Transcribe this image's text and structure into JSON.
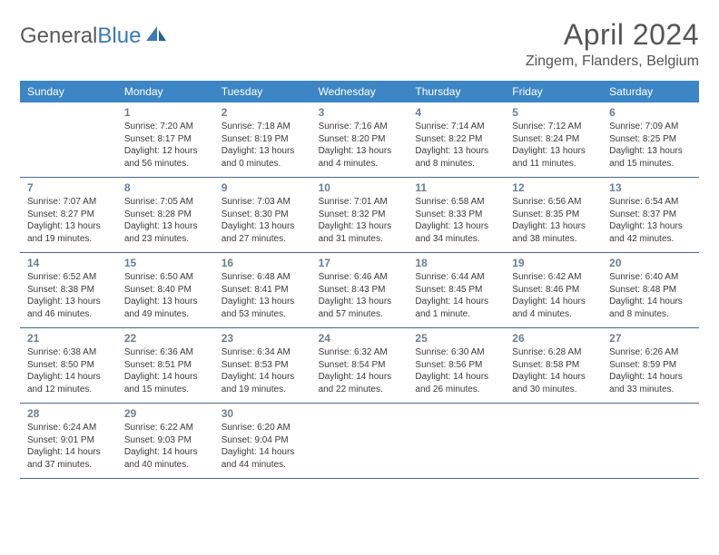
{
  "logo": {
    "text1": "General",
    "text2": "Blue"
  },
  "title": "April 2024",
  "location": "Zingem, Flanders, Belgium",
  "header_bg": "#3c86c5",
  "daynames": [
    "Sunday",
    "Monday",
    "Tuesday",
    "Wednesday",
    "Thursday",
    "Friday",
    "Saturday"
  ],
  "weeks": [
    [
      null,
      {
        "n": "1",
        "sr": "7:20 AM",
        "ss": "8:17 PM",
        "d1": "Daylight: 12 hours",
        "d2": "and 56 minutes."
      },
      {
        "n": "2",
        "sr": "7:18 AM",
        "ss": "8:19 PM",
        "d1": "Daylight: 13 hours",
        "d2": "and 0 minutes."
      },
      {
        "n": "3",
        "sr": "7:16 AM",
        "ss": "8:20 PM",
        "d1": "Daylight: 13 hours",
        "d2": "and 4 minutes."
      },
      {
        "n": "4",
        "sr": "7:14 AM",
        "ss": "8:22 PM",
        "d1": "Daylight: 13 hours",
        "d2": "and 8 minutes."
      },
      {
        "n": "5",
        "sr": "7:12 AM",
        "ss": "8:24 PM",
        "d1": "Daylight: 13 hours",
        "d2": "and 11 minutes."
      },
      {
        "n": "6",
        "sr": "7:09 AM",
        "ss": "8:25 PM",
        "d1": "Daylight: 13 hours",
        "d2": "and 15 minutes."
      }
    ],
    [
      {
        "n": "7",
        "sr": "7:07 AM",
        "ss": "8:27 PM",
        "d1": "Daylight: 13 hours",
        "d2": "and 19 minutes."
      },
      {
        "n": "8",
        "sr": "7:05 AM",
        "ss": "8:28 PM",
        "d1": "Daylight: 13 hours",
        "d2": "and 23 minutes."
      },
      {
        "n": "9",
        "sr": "7:03 AM",
        "ss": "8:30 PM",
        "d1": "Daylight: 13 hours",
        "d2": "and 27 minutes."
      },
      {
        "n": "10",
        "sr": "7:01 AM",
        "ss": "8:32 PM",
        "d1": "Daylight: 13 hours",
        "d2": "and 31 minutes."
      },
      {
        "n": "11",
        "sr": "6:58 AM",
        "ss": "8:33 PM",
        "d1": "Daylight: 13 hours",
        "d2": "and 34 minutes."
      },
      {
        "n": "12",
        "sr": "6:56 AM",
        "ss": "8:35 PM",
        "d1": "Daylight: 13 hours",
        "d2": "and 38 minutes."
      },
      {
        "n": "13",
        "sr": "6:54 AM",
        "ss": "8:37 PM",
        "d1": "Daylight: 13 hours",
        "d2": "and 42 minutes."
      }
    ],
    [
      {
        "n": "14",
        "sr": "6:52 AM",
        "ss": "8:38 PM",
        "d1": "Daylight: 13 hours",
        "d2": "and 46 minutes."
      },
      {
        "n": "15",
        "sr": "6:50 AM",
        "ss": "8:40 PM",
        "d1": "Daylight: 13 hours",
        "d2": "and 49 minutes."
      },
      {
        "n": "16",
        "sr": "6:48 AM",
        "ss": "8:41 PM",
        "d1": "Daylight: 13 hours",
        "d2": "and 53 minutes."
      },
      {
        "n": "17",
        "sr": "6:46 AM",
        "ss": "8:43 PM",
        "d1": "Daylight: 13 hours",
        "d2": "and 57 minutes."
      },
      {
        "n": "18",
        "sr": "6:44 AM",
        "ss": "8:45 PM",
        "d1": "Daylight: 14 hours",
        "d2": "and 1 minute."
      },
      {
        "n": "19",
        "sr": "6:42 AM",
        "ss": "8:46 PM",
        "d1": "Daylight: 14 hours",
        "d2": "and 4 minutes."
      },
      {
        "n": "20",
        "sr": "6:40 AM",
        "ss": "8:48 PM",
        "d1": "Daylight: 14 hours",
        "d2": "and 8 minutes."
      }
    ],
    [
      {
        "n": "21",
        "sr": "6:38 AM",
        "ss": "8:50 PM",
        "d1": "Daylight: 14 hours",
        "d2": "and 12 minutes."
      },
      {
        "n": "22",
        "sr": "6:36 AM",
        "ss": "8:51 PM",
        "d1": "Daylight: 14 hours",
        "d2": "and 15 minutes."
      },
      {
        "n": "23",
        "sr": "6:34 AM",
        "ss": "8:53 PM",
        "d1": "Daylight: 14 hours",
        "d2": "and 19 minutes."
      },
      {
        "n": "24",
        "sr": "6:32 AM",
        "ss": "8:54 PM",
        "d1": "Daylight: 14 hours",
        "d2": "and 22 minutes."
      },
      {
        "n": "25",
        "sr": "6:30 AM",
        "ss": "8:56 PM",
        "d1": "Daylight: 14 hours",
        "d2": "and 26 minutes."
      },
      {
        "n": "26",
        "sr": "6:28 AM",
        "ss": "8:58 PM",
        "d1": "Daylight: 14 hours",
        "d2": "and 30 minutes."
      },
      {
        "n": "27",
        "sr": "6:26 AM",
        "ss": "8:59 PM",
        "d1": "Daylight: 14 hours",
        "d2": "and 33 minutes."
      }
    ],
    [
      {
        "n": "28",
        "sr": "6:24 AM",
        "ss": "9:01 PM",
        "d1": "Daylight: 14 hours",
        "d2": "and 37 minutes."
      },
      {
        "n": "29",
        "sr": "6:22 AM",
        "ss": "9:03 PM",
        "d1": "Daylight: 14 hours",
        "d2": "and 40 minutes."
      },
      {
        "n": "30",
        "sr": "6:20 AM",
        "ss": "9:04 PM",
        "d1": "Daylight: 14 hours",
        "d2": "and 44 minutes."
      },
      null,
      null,
      null,
      null
    ]
  ],
  "labels": {
    "sunrise": "Sunrise: ",
    "sunset": "Sunset: "
  }
}
